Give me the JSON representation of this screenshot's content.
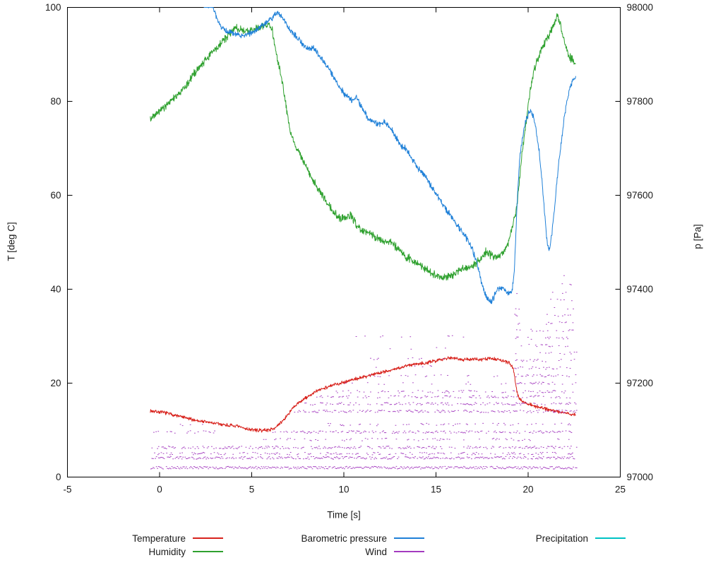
{
  "figure": {
    "background": "#ffffff",
    "axis_color": "#000000",
    "text_color": "#1a1a1a"
  },
  "chart_data": {
    "type": "line",
    "title": "",
    "xlabel": "Time [s]",
    "ylabel_left": "T [deg C]",
    "ylabel_right": "p [Pa]",
    "xlim": [
      -5,
      25
    ],
    "ylim_left": [
      0,
      100
    ],
    "ylim_right": [
      97000,
      98000
    ],
    "xticks": [
      -5,
      0,
      5,
      10,
      15,
      20,
      25
    ],
    "yticks_left": [
      0,
      20,
      40,
      60,
      80,
      100
    ],
    "yticks_right": [
      97000,
      97200,
      97400,
      97600,
      97800,
      98000
    ],
    "grid": false,
    "legend_position": "bottom",
    "series": [
      {
        "name": "Temperature",
        "color": "#d8231d",
        "axis": "left",
        "style": "noisy-line",
        "noise": 0.45,
        "keypoints": [
          [
            -0.5,
            14.1
          ],
          [
            0.3,
            13.7
          ],
          [
            1,
            13
          ],
          [
            1.8,
            12.2
          ],
          [
            2.6,
            11.7
          ],
          [
            3.4,
            11.2
          ],
          [
            4.2,
            10.8
          ],
          [
            4.8,
            10.2
          ],
          [
            5.4,
            9.9
          ],
          [
            6,
            10.1
          ],
          [
            6.4,
            10.8
          ],
          [
            6.8,
            12.5
          ],
          [
            7.2,
            14.5
          ],
          [
            7.6,
            16
          ],
          [
            8,
            17
          ],
          [
            8.4,
            18
          ],
          [
            8.8,
            18.8
          ],
          [
            9.2,
            19.3
          ],
          [
            9.6,
            19.8
          ],
          [
            10,
            20.2
          ],
          [
            10.5,
            20.8
          ],
          [
            11,
            21.2
          ],
          [
            11.5,
            21.8
          ],
          [
            12,
            22.3
          ],
          [
            12.5,
            22.7
          ],
          [
            13,
            23.2
          ],
          [
            13.5,
            23.8
          ],
          [
            14,
            24.2
          ],
          [
            14.5,
            24.3
          ],
          [
            15,
            24.8
          ],
          [
            15.5,
            25.3
          ],
          [
            16,
            25.4
          ],
          [
            16.5,
            25
          ],
          [
            17,
            25.1
          ],
          [
            17.5,
            25
          ],
          [
            18,
            25.3
          ],
          [
            18.5,
            24.9
          ],
          [
            19,
            24.2
          ],
          [
            19.2,
            23.2
          ],
          [
            19.35,
            19
          ],
          [
            19.5,
            16.8
          ],
          [
            19.8,
            15.9
          ],
          [
            20.2,
            15.3
          ],
          [
            20.7,
            14.8
          ],
          [
            21.2,
            14.3
          ],
          [
            21.7,
            13.9
          ],
          [
            22.1,
            13.6
          ],
          [
            22.6,
            13.2
          ]
        ]
      },
      {
        "name": "Humidity",
        "color": "#2fa12f",
        "axis": "left",
        "style": "noisy-line",
        "noise": 1.0,
        "keypoints": [
          [
            -0.5,
            76
          ],
          [
            -0.2,
            77.5
          ],
          [
            0.2,
            78.5
          ],
          [
            0.6,
            80
          ],
          [
            1,
            81.5
          ],
          [
            1.4,
            83
          ],
          [
            1.8,
            85.5
          ],
          [
            2.2,
            87.5
          ],
          [
            2.6,
            89.5
          ],
          [
            3,
            91
          ],
          [
            3.4,
            92.5
          ],
          [
            3.8,
            94.5
          ],
          [
            4.1,
            95.8
          ],
          [
            4.4,
            95.2
          ],
          [
            4.7,
            94.8
          ],
          [
            5,
            95.2
          ],
          [
            5.3,
            95.6
          ],
          [
            5.6,
            96
          ],
          [
            5.9,
            96.6
          ],
          [
            6.1,
            95.5
          ],
          [
            6.3,
            91
          ],
          [
            6.5,
            87
          ],
          [
            6.7,
            83
          ],
          [
            6.9,
            78
          ],
          [
            7.1,
            73.5
          ],
          [
            7.35,
            70.5
          ],
          [
            7.6,
            69
          ],
          [
            7.9,
            66.5
          ],
          [
            8.2,
            64
          ],
          [
            8.6,
            61.5
          ],
          [
            9,
            59
          ],
          [
            9.4,
            56.5
          ],
          [
            9.8,
            55
          ],
          [
            10.1,
            55.5
          ],
          [
            10.4,
            55.8
          ],
          [
            10.7,
            53.5
          ],
          [
            11,
            52.5
          ],
          [
            11.4,
            51.8
          ],
          [
            11.8,
            51
          ],
          [
            12.2,
            50.4
          ],
          [
            12.6,
            49.8
          ],
          [
            13,
            48.4
          ],
          [
            13.4,
            46.8
          ],
          [
            13.8,
            46
          ],
          [
            14.2,
            45
          ],
          [
            14.6,
            43.8
          ],
          [
            15,
            43
          ],
          [
            15.4,
            42.4
          ],
          [
            15.8,
            42.8
          ],
          [
            16.2,
            43.8
          ],
          [
            16.6,
            44.6
          ],
          [
            17,
            45
          ],
          [
            17.4,
            46.4
          ],
          [
            17.7,
            48
          ],
          [
            18,
            47.2
          ],
          [
            18.3,
            46.8
          ],
          [
            18.6,
            47.6
          ],
          [
            18.9,
            49.5
          ],
          [
            19.1,
            53
          ],
          [
            19.25,
            55
          ],
          [
            19.4,
            58
          ],
          [
            19.55,
            64
          ],
          [
            19.7,
            70
          ],
          [
            19.9,
            76
          ],
          [
            20.1,
            82
          ],
          [
            20.35,
            87
          ],
          [
            20.6,
            90
          ],
          [
            20.9,
            92.5
          ],
          [
            21.2,
            94.5
          ],
          [
            21.45,
            97
          ],
          [
            21.6,
            98.3
          ],
          [
            21.75,
            96.5
          ],
          [
            21.9,
            93.5
          ],
          [
            22.05,
            91.5
          ],
          [
            22.25,
            89.5
          ],
          [
            22.6,
            88
          ]
        ]
      },
      {
        "name": "Barometric pressure",
        "color": "#1f80d8",
        "axis": "right",
        "style": "noisy-line",
        "noise": 8,
        "keypoints": [
          [
            2.4,
            98010
          ],
          [
            2.9,
            98000
          ],
          [
            3.1,
            97978
          ],
          [
            3.35,
            97958
          ],
          [
            3.6,
            97950
          ],
          [
            3.9,
            97946
          ],
          [
            4.2,
            97942
          ],
          [
            4.6,
            97940
          ],
          [
            5,
            97946
          ],
          [
            5.4,
            97956
          ],
          [
            5.8,
            97968
          ],
          [
            6.1,
            97978
          ],
          [
            6.4,
            97988
          ],
          [
            6.6,
            97982
          ],
          [
            6.8,
            97970
          ],
          [
            7.1,
            97952
          ],
          [
            7.4,
            97938
          ],
          [
            7.7,
            97926
          ],
          [
            8,
            97912
          ],
          [
            8.3,
            97916
          ],
          [
            8.6,
            97902
          ],
          [
            8.9,
            97886
          ],
          [
            9.2,
            97868
          ],
          [
            9.5,
            97848
          ],
          [
            9.8,
            97830
          ],
          [
            10.1,
            97812
          ],
          [
            10.4,
            97802
          ],
          [
            10.7,
            97808
          ],
          [
            11,
            97786
          ],
          [
            11.3,
            97764
          ],
          [
            11.6,
            97757
          ],
          [
            11.9,
            97750
          ],
          [
            12.2,
            97756
          ],
          [
            12.5,
            97744
          ],
          [
            12.8,
            97726
          ],
          [
            13.1,
            97706
          ],
          [
            13.4,
            97698
          ],
          [
            13.7,
            97678
          ],
          [
            14,
            97658
          ],
          [
            14.3,
            97648
          ],
          [
            14.6,
            97628
          ],
          [
            14.9,
            97608
          ],
          [
            15.2,
            97592
          ],
          [
            15.5,
            97572
          ],
          [
            15.8,
            97556
          ],
          [
            16.1,
            97540
          ],
          [
            16.4,
            97522
          ],
          [
            16.7,
            97506
          ],
          [
            17,
            97482
          ],
          [
            17.2,
            97458
          ],
          [
            17.4,
            97426
          ],
          [
            17.6,
            97396
          ],
          [
            17.8,
            97378
          ],
          [
            18,
            97374
          ],
          [
            18.2,
            97388
          ],
          [
            18.4,
            97402
          ],
          [
            18.6,
            97404
          ],
          [
            18.8,
            97394
          ],
          [
            19,
            97390
          ],
          [
            19.15,
            97402
          ],
          [
            19.25,
            97436
          ],
          [
            19.35,
            97530
          ],
          [
            19.45,
            97620
          ],
          [
            19.55,
            97682
          ],
          [
            19.7,
            97724
          ],
          [
            19.85,
            97756
          ],
          [
            20,
            97772
          ],
          [
            20.15,
            97780
          ],
          [
            20.3,
            97766
          ],
          [
            20.45,
            97736
          ],
          [
            20.6,
            97692
          ],
          [
            20.75,
            97632
          ],
          [
            20.9,
            97560
          ],
          [
            21,
            97510
          ],
          [
            21.1,
            97484
          ],
          [
            21.2,
            97492
          ],
          [
            21.35,
            97540
          ],
          [
            21.5,
            97602
          ],
          [
            21.65,
            97664
          ],
          [
            21.8,
            97716
          ],
          [
            21.95,
            97762
          ],
          [
            22.1,
            97800
          ],
          [
            22.25,
            97828
          ],
          [
            22.45,
            97848
          ],
          [
            22.6,
            97852
          ]
        ]
      },
      {
        "name": "Wind",
        "color": "#a33bbf",
        "axis": "left",
        "style": "dash-bands",
        "bands": [
          [
            2.0,
            -0.5,
            22.6,
            0.95
          ],
          [
            4.1,
            -0.5,
            22.6,
            0.75
          ],
          [
            5.0,
            -0.3,
            22.5,
            0.4
          ],
          [
            6.3,
            -0.5,
            22.6,
            0.55
          ],
          [
            8.0,
            5.5,
            22.4,
            0.3
          ],
          [
            9.6,
            -0.4,
            3.0,
            0.3
          ],
          [
            9.6,
            6.0,
            22.4,
            0.5
          ],
          [
            11.2,
            0.8,
            2.4,
            0.12
          ],
          [
            11.2,
            9.0,
            22.3,
            0.22
          ],
          [
            14.0,
            7.3,
            22.6,
            0.55
          ],
          [
            15.6,
            7.8,
            22.6,
            0.5
          ],
          [
            17.1,
            8.5,
            22.6,
            0.4
          ],
          [
            18.2,
            9.5,
            22.5,
            0.3
          ],
          [
            20.0,
            10.0,
            18.8,
            0.1
          ],
          [
            21.6,
            10.5,
            18.5,
            0.12
          ],
          [
            23.5,
            11.0,
            17.0,
            0.07
          ],
          [
            25.2,
            11.0,
            16.5,
            0.1
          ],
          [
            27.5,
            12.0,
            15.8,
            0.07
          ],
          [
            30.0,
            10.4,
            16.5,
            0.06
          ],
          [
            20.0,
            19.25,
            22.6,
            0.4
          ],
          [
            21.6,
            19.25,
            22.6,
            0.38
          ],
          [
            23.2,
            19.25,
            22.6,
            0.36
          ],
          [
            24.8,
            19.3,
            22.6,
            0.34
          ],
          [
            26.4,
            19.3,
            22.6,
            0.32
          ],
          [
            28.0,
            19.3,
            22.55,
            0.3
          ],
          [
            29.6,
            19.3,
            22.55,
            0.28
          ],
          [
            31.2,
            19.35,
            22.5,
            0.26
          ],
          [
            32.8,
            19.25,
            19.6,
            0.35
          ],
          [
            32.8,
            20.9,
            22.5,
            0.24
          ],
          [
            34.4,
            19.25,
            19.55,
            0.3
          ],
          [
            34.4,
            21.0,
            22.5,
            0.22
          ],
          [
            36.0,
            19.3,
            19.5,
            0.28
          ],
          [
            36.0,
            21.1,
            22.45,
            0.2
          ],
          [
            37.6,
            19.3,
            19.5,
            0.24
          ],
          [
            37.6,
            21.2,
            22.4,
            0.17
          ],
          [
            39.2,
            19.3,
            19.45,
            0.2
          ],
          [
            39.2,
            21.3,
            22.35,
            0.14
          ],
          [
            41.0,
            19.3,
            19.45,
            0.15
          ],
          [
            41.0,
            21.4,
            22.3,
            0.12
          ],
          [
            43.0,
            19.35,
            19.45,
            0.12
          ],
          [
            43.0,
            21.5,
            22.25,
            0.1
          ],
          [
            45.0,
            21.6,
            22.1,
            0.06
          ]
        ]
      },
      {
        "name": "Precipitation",
        "color": "#00c2c4",
        "axis": "left",
        "style": "noisy-line",
        "noise": 0,
        "keypoints": []
      }
    ]
  },
  "legend": {
    "entries": [
      {
        "label": "Temperature"
      },
      {
        "label": "Humidity"
      },
      {
        "label": "Barometric pressure"
      },
      {
        "label": "Wind"
      },
      {
        "label": "Precipitation"
      }
    ]
  }
}
